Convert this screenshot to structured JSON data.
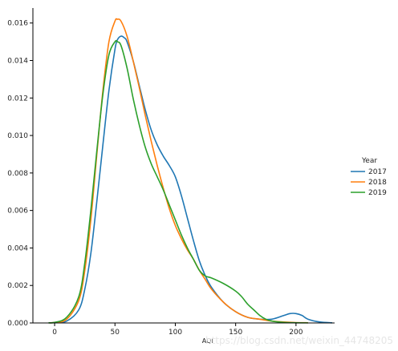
{
  "chart_data": {
    "type": "line",
    "xlabel": "AQI",
    "ylabel": "",
    "xlim": [
      -18,
      232
    ],
    "ylim": [
      0,
      0.0168
    ],
    "x_ticks": [
      0,
      50,
      100,
      150,
      200
    ],
    "y_ticks": [
      0.0,
      0.002,
      0.004,
      0.006,
      0.008,
      0.01,
      0.012,
      0.014,
      0.016
    ],
    "y_tick_labels": [
      "0.000",
      "0.002",
      "0.004",
      "0.006",
      "0.008",
      "0.010",
      "0.012",
      "0.014",
      "0.016"
    ],
    "legend": {
      "title": "Year",
      "placement": "right"
    },
    "series": [
      {
        "name": "2017",
        "color": "#1f77b4",
        "x": [
          -5,
          0,
          10,
          20,
          25,
          30,
          35,
          40,
          45,
          50,
          52,
          55,
          58,
          60,
          65,
          70,
          75,
          80,
          85,
          90,
          95,
          100,
          105,
          110,
          115,
          120,
          125,
          130,
          140,
          150,
          160,
          170,
          180,
          190,
          195,
          200,
          205,
          210,
          220,
          230
        ],
        "y": [
          1e-05,
          2e-05,
          0.0001,
          0.0007,
          0.0018,
          0.0037,
          0.0065,
          0.0095,
          0.0124,
          0.0146,
          0.0151,
          0.0153,
          0.0152,
          0.015,
          0.014,
          0.0127,
          0.0114,
          0.0103,
          0.0095,
          0.0089,
          0.0084,
          0.0078,
          0.0068,
          0.0056,
          0.0044,
          0.0033,
          0.0025,
          0.0019,
          0.0011,
          0.0006,
          0.0003,
          0.0002,
          0.0002,
          0.0004,
          0.0005,
          0.0005,
          0.0004,
          0.0002,
          5e-05,
          1e-05
        ]
      },
      {
        "name": "2018",
        "color": "#ff7f0e",
        "x": [
          -5,
          0,
          10,
          20,
          25,
          30,
          35,
          40,
          45,
          50,
          52,
          55,
          60,
          65,
          70,
          75,
          80,
          85,
          90,
          95,
          100,
          105,
          110,
          115,
          120,
          125,
          130,
          140,
          150,
          160,
          170,
          180,
          190,
          200,
          210
        ],
        "y": [
          1e-05,
          3e-05,
          0.0002,
          0.0012,
          0.0028,
          0.0055,
          0.009,
          0.0124,
          0.015,
          0.0161,
          0.0162,
          0.0161,
          0.0153,
          0.014,
          0.0126,
          0.0111,
          0.0097,
          0.0084,
          0.0072,
          0.0061,
          0.0052,
          0.0045,
          0.0039,
          0.0034,
          0.0028,
          0.0023,
          0.0018,
          0.0011,
          0.0006,
          0.0003,
          0.0002,
          0.0001,
          5e-05,
          2e-05,
          1e-05
        ]
      },
      {
        "name": "2019",
        "color": "#2ca02c",
        "x": [
          -5,
          0,
          10,
          20,
          25,
          30,
          35,
          40,
          45,
          50,
          52,
          55,
          60,
          65,
          70,
          75,
          80,
          85,
          90,
          95,
          100,
          105,
          110,
          115,
          120,
          125,
          130,
          140,
          150,
          155,
          160,
          165,
          170,
          175,
          180,
          190,
          200,
          210
        ],
        "y": [
          1e-05,
          3e-05,
          0.0003,
          0.0014,
          0.0032,
          0.006,
          0.0092,
          0.0122,
          0.0143,
          0.015,
          0.015,
          0.0148,
          0.0136,
          0.012,
          0.0106,
          0.0094,
          0.0085,
          0.0078,
          0.0071,
          0.0063,
          0.0055,
          0.0047,
          0.004,
          0.0034,
          0.0028,
          0.0025,
          0.0024,
          0.0021,
          0.0017,
          0.0014,
          0.001,
          0.0007,
          0.0004,
          0.0002,
          0.0001,
          3e-05,
          1e-05,
          5e-06
        ]
      }
    ]
  },
  "watermark": "https://blog.csdn.net/weixin_44748205"
}
